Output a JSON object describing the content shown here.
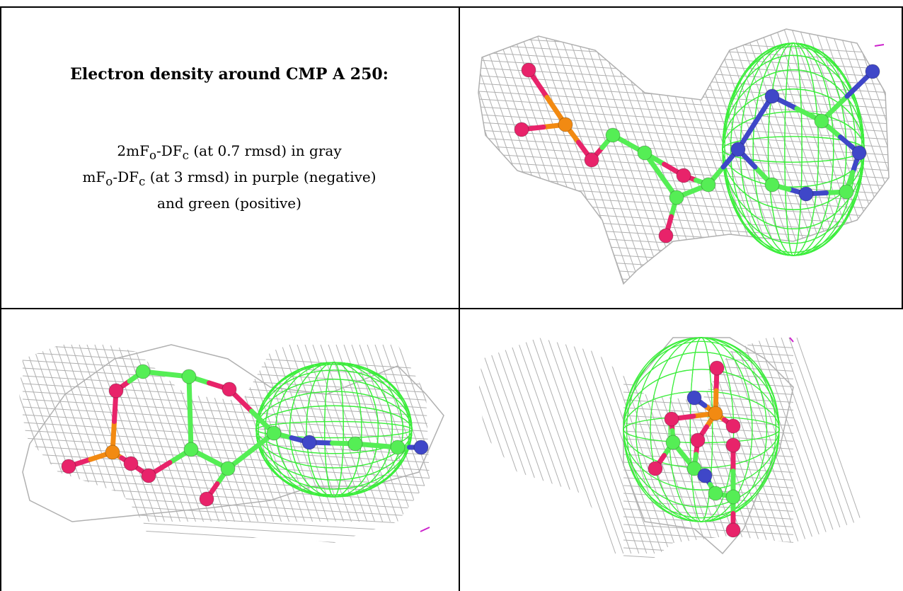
{
  "caption": {
    "title": "Electron density around CMP A 250:",
    "line1_pre": "2mF",
    "line1_sub1": "o",
    "line1_mid": "-DF",
    "line1_sub2": "c",
    "line1_post": " (at 0.7 rmsd) in gray",
    "line2_pre": "mF",
    "line2_sub1": "o",
    "line2_mid": "-DF",
    "line2_sub2": "c",
    "line2_post": " (at 3 rmsd) in purple (negative)",
    "line3": "and green (positive)"
  },
  "colors": {
    "mesh_gray": "#b0b0b0",
    "mesh_green": "#33ee33",
    "carbon": "#55ee55",
    "oxygen": "#e8236a",
    "nitrogen": "#3f47c8",
    "phosphorus": "#f28a12",
    "negative": "#cc22cc"
  },
  "views": [
    {
      "name": "view-top-right"
    },
    {
      "name": "view-bottom-left"
    },
    {
      "name": "view-bottom-right"
    }
  ]
}
